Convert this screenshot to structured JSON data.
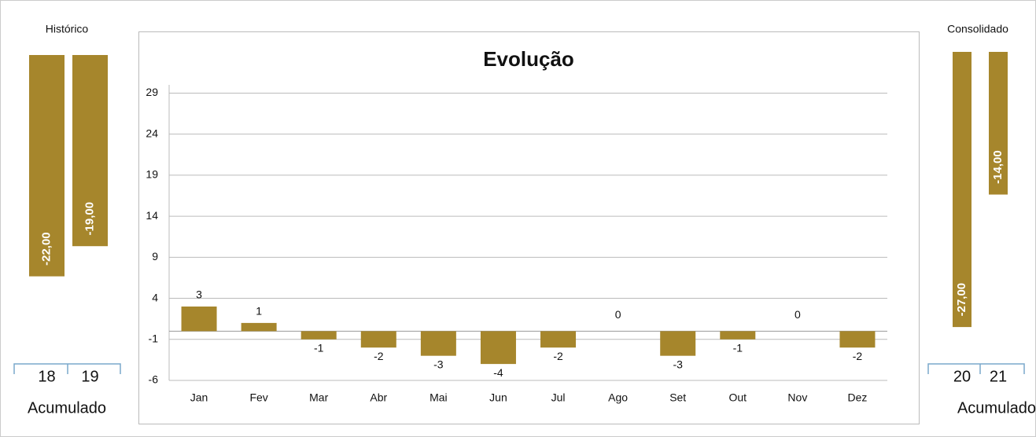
{
  "chart_data": [
    {
      "type": "bar",
      "title": "Histórico",
      "xlabel": "Acumulado",
      "categories": [
        "18",
        "19"
      ],
      "values": [
        -22,
        -19
      ],
      "value_labels": [
        "-22,00",
        "-19,00"
      ],
      "color": "#a6862c",
      "ylim": [
        -30,
        0
      ]
    },
    {
      "type": "bar",
      "title": "Evolução",
      "categories": [
        "Jan",
        "Fev",
        "Mar",
        "Abr",
        "Mai",
        "Jun",
        "Jul",
        "Ago",
        "Set",
        "Out",
        "Nov",
        "Dez"
      ],
      "values": [
        3,
        1,
        -1,
        -2,
        -3,
        -4,
        -2,
        0,
        -3,
        -1,
        0,
        -2
      ],
      "color": "#a6862c",
      "ylim": [
        -6,
        30
      ],
      "yticks": [
        -6,
        -1,
        4,
        9,
        14,
        19,
        24,
        29
      ],
      "grid": true
    },
    {
      "type": "bar",
      "title": "Consolidado",
      "xlabel": "Acumulado",
      "categories": [
        "20",
        "21"
      ],
      "values": [
        -27,
        -14
      ],
      "value_labels": [
        "-27,00",
        "-14,00"
      ],
      "color": "#a6862c",
      "ylim": [
        -30,
        0
      ]
    }
  ]
}
